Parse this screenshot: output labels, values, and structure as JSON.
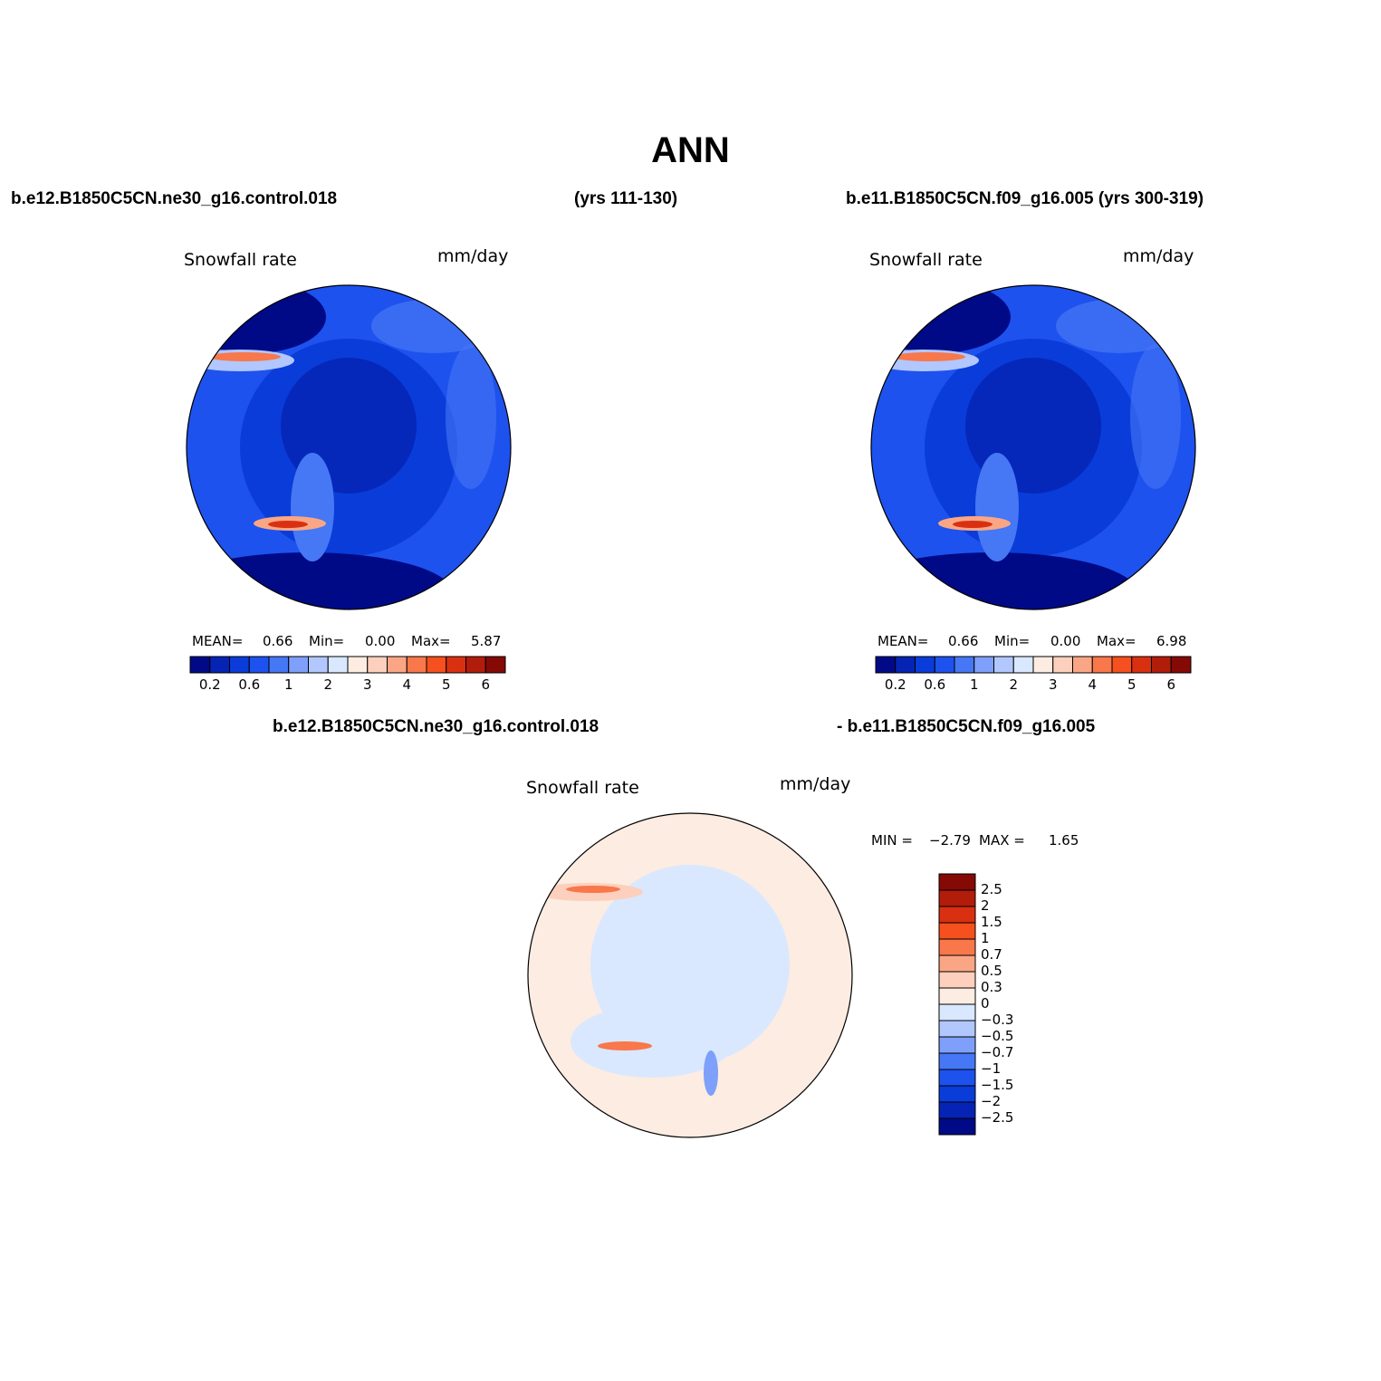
{
  "title": "ANN",
  "colors": {
    "abs_scale": [
      "#000a87",
      "#0524b4",
      "#0a3cd9",
      "#1e52ee",
      "#4677f5",
      "#7ea0fa",
      "#b1c7fd",
      "#d9e8ff",
      "#fdece1",
      "#fcd0bd",
      "#faa685",
      "#f8774b",
      "#f5501d",
      "#d93012",
      "#b21c0a",
      "#850a05"
    ],
    "diff_scale": [
      "#850a05",
      "#b21c0a",
      "#d93012",
      "#f5501d",
      "#f8774b",
      "#faa685",
      "#fcd0bd",
      "#fdece1",
      "#d9e8ff",
      "#b1c7fd",
      "#7ea0fa",
      "#4677f5",
      "#1e52ee",
      "#0a3cd9",
      "#0524b4",
      "#000a87"
    ]
  },
  "top": {
    "left_case": "b.e12.B1850C5CN.ne30_g16.control.018",
    "left_years": "(yrs 111-130)",
    "right_case": "b.e11.B1850C5CN.f09_g16.005 (yrs 300-319)"
  },
  "panels": [
    {
      "variable": "Snowfall rate",
      "units": "mm/day",
      "mean_label": "MEAN=",
      "mean_value": "0.66",
      "min_label": "Min=",
      "min_value": "0.00",
      "max_label": "Max=",
      "max_value": "5.87",
      "ticks": [
        "0.2",
        "0.6",
        "1",
        "2",
        "3",
        "4",
        "5",
        "6"
      ]
    },
    {
      "variable": "Snowfall rate",
      "units": "mm/day",
      "mean_label": "MEAN=",
      "mean_value": "0.66",
      "min_label": "Min=",
      "min_value": "0.00",
      "max_label": "Max=",
      "max_value": "6.98",
      "ticks": [
        "0.2",
        "0.6",
        "1",
        "2",
        "3",
        "4",
        "5",
        "6"
      ]
    }
  ],
  "diff": {
    "case_a": "b.e12.B1850C5CN.ne30_g16.control.018",
    "case_b": "- b.e11.B1850C5CN.f09_g16.005",
    "variable": "Snowfall rate",
    "units": "mm/day",
    "min_label": "MIN =",
    "min_value": "−2.79",
    "max_label": "MAX =",
    "max_value": "1.65",
    "ticks": [
      "2.5",
      "2",
      "1.5",
      "1",
      "0.7",
      "0.5",
      "0.3",
      "0",
      "−0.3",
      "−0.5",
      "−0.7",
      "−1",
      "−1.5",
      "−2",
      "−2.5"
    ]
  }
}
